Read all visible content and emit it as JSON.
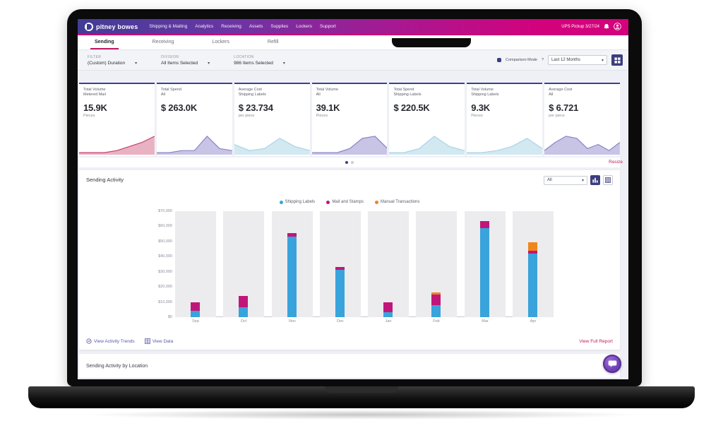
{
  "brand": "pitney bowes",
  "topnav": {
    "items": [
      "Shipping & Mailing",
      "Analytics",
      "Receiving",
      "Assets",
      "Supplies",
      "Lockers",
      "Support"
    ],
    "pickup_text": "UPS Pickup 3/27/24"
  },
  "tabs": [
    {
      "label": "Sending",
      "active": true
    },
    {
      "label": "Receiving",
      "active": false
    },
    {
      "label": "Lockers",
      "active": false
    },
    {
      "label": "Refill",
      "active": false
    }
  ],
  "filters": [
    {
      "label": "FILTER",
      "value": "(Custom) Duration"
    },
    {
      "label": "DIVISION",
      "value": "All Items Selected"
    },
    {
      "label": "LOCATION",
      "value": "986 Items Selected"
    }
  ],
  "filter_right": {
    "toggle_label": "Comparison Mode",
    "help": "?",
    "range_value": "Last 12 Months"
  },
  "kpis": [
    {
      "title": "Total Volume",
      "subtitle": "Metered Mail",
      "value": "15.9K",
      "unit": "Pieces",
      "accent": "#C9255C",
      "spark_color": "#C9416E",
      "spark_fill": "#E9B2C3",
      "spark": [
        1,
        1,
        1,
        2,
        4,
        6,
        9
      ]
    },
    {
      "title": "Total Spend",
      "subtitle": "All",
      "value": "$ 263.0K",
      "unit": "",
      "accent": "",
      "spark_color": "#8C85C6",
      "spark_fill": "#C8C4E5",
      "spark": [
        1,
        1,
        2,
        2,
        9,
        3,
        2
      ]
    },
    {
      "title": "Average Cost",
      "subtitle": "Shipping Labels",
      "value": "$ 23.734",
      "unit": "per piece",
      "accent": "",
      "spark_color": "#A7D4E6",
      "spark_fill": "#D2E9F2",
      "spark": [
        5,
        2,
        3,
        8,
        4,
        2
      ]
    },
    {
      "title": "Total Volume",
      "subtitle": "All",
      "value": "39.1K",
      "unit": "Pieces",
      "accent": "",
      "spark_color": "#8C85C6",
      "spark_fill": "#C8C4E5",
      "spark": [
        1,
        1,
        1,
        3,
        8,
        9,
        3
      ]
    },
    {
      "title": "Total Spend",
      "subtitle": "Shipping Labels",
      "value": "$ 220.5K",
      "unit": "",
      "accent": "",
      "spark_color": "#A7D4E6",
      "spark_fill": "#D2E9F2",
      "spark": [
        1,
        1,
        3,
        9,
        4,
        2
      ]
    },
    {
      "title": "Total Volume",
      "subtitle": "Shipping Labels",
      "value": "9.3K",
      "unit": "Pieces",
      "accent": "",
      "spark_color": "#A7D4E6",
      "spark_fill": "#D2E9F2",
      "spark": [
        1,
        1,
        2,
        4,
        8,
        3
      ]
    },
    {
      "title": "Average Cost",
      "subtitle": "All",
      "value": "$ 6.721",
      "unit": "per piece",
      "accent": "",
      "spark_color": "#8C85C6",
      "spark_fill": "#C8C4E5",
      "spark": [
        2,
        6,
        9,
        8,
        3,
        5,
        2,
        6
      ]
    }
  ],
  "carousel": {
    "dots": 2,
    "active": 0
  },
  "resize_link": "Resize",
  "chart_section": {
    "title": "Sending Activity",
    "select_value": "All",
    "links": [
      {
        "label": "View Activity Trends"
      },
      {
        "label": "View Data"
      }
    ],
    "report_link": "View Full Report"
  },
  "chart_data": {
    "type": "bar",
    "stacked": true,
    "title": "Sending Activity",
    "categories": [
      "Sep",
      "Oct",
      "Nov",
      "Dec",
      "Jan",
      "Feb",
      "Mar",
      "Apr"
    ],
    "series": [
      {
        "name": "Shipping Labels",
        "color": "#39A3DC",
        "values": [
          4000,
          6500,
          53000,
          31500,
          3500,
          8000,
          59000,
          42000
        ]
      },
      {
        "name": "Mail and Stamps",
        "color": "#C11679",
        "values": [
          6000,
          7500,
          2500,
          1500,
          6500,
          7000,
          4500,
          2000
        ]
      },
      {
        "name": "Manual Transactions",
        "color": "#EF861D",
        "values": [
          0,
          0,
          0,
          0,
          0,
          1500,
          0,
          5500
        ]
      }
    ],
    "ylim": [
      0,
      70000
    ],
    "ytick_step": 10000,
    "ytick_prefix": "$",
    "legend_position": "top",
    "grid": false
  },
  "bottom_section": {
    "title": "Sending Activity by Location"
  }
}
